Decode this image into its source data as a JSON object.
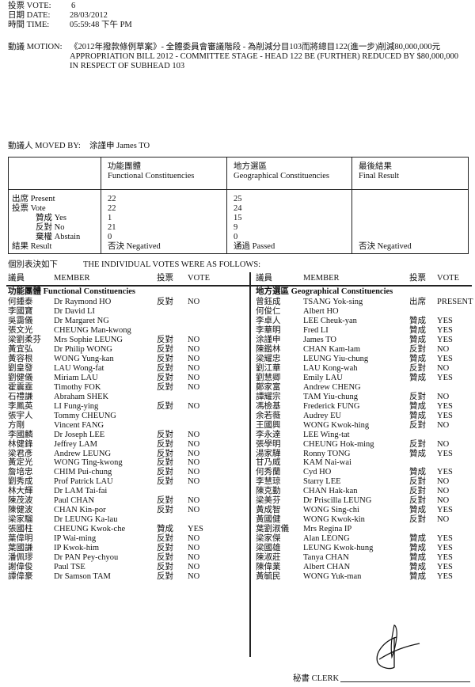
{
  "header": {
    "vote_label": "投票 VOTE:",
    "vote_value": "6",
    "date_label": "日期 DATE:",
    "date_value": "28/03/2012",
    "time_label": "時間 TIME:",
    "time_value": "05:59:48 下午 PM",
    "motion_label": "動議 MOTION:",
    "motion_lines": [
      "《2012年撥款條例草案》- 全體委員會審議階段 - 為削減分目103而將總目122(進一步)削減80,000,000元",
      "APPROPRIATION BILL 2012 - COMMITTEE STAGE - HEAD 122 BE (FURTHER) REDUCED BY $80,000,000",
      "IN RESPECT OF SUBHEAD 103"
    ],
    "moved_by_label": "動議人 MOVED BY:",
    "moved_by_value": "涂謹申   James TO"
  },
  "summary": {
    "columns": [
      {
        "zh": "功能團體",
        "en": "Functional Constituencies"
      },
      {
        "zh": "地方選區",
        "en": "Geographical Constituencies"
      },
      {
        "zh": "最後結果",
        "en": "Final Result"
      }
    ],
    "row_labels": [
      "出席 Present",
      "投票 Vote",
      "贊成 Yes",
      "反對 No",
      "棄權 Abstain",
      "結果 Result"
    ],
    "functional": [
      "22",
      "22",
      "1",
      "21",
      "0",
      "否決 Negatived"
    ],
    "geographical": [
      "25",
      "24",
      "15",
      "9",
      "0",
      "通過 Passed"
    ],
    "final": [
      "",
      "",
      "",
      "",
      "",
      "否決 Negatived"
    ]
  },
  "individual": {
    "title_zh": "個別表決如下",
    "title_en": "THE INDIVIDUAL VOTES WERE AS FOLLOWS:",
    "col_headers": {
      "member_zh": "議員",
      "member_en": "MEMBER",
      "vote_zh": "投票",
      "vote_en": "VOTE"
    },
    "functional": {
      "title": "功能團體 Functional Constituencies",
      "members": [
        [
          "何鍾泰",
          "Dr Raymond HO",
          "反對",
          "NO"
        ],
        [
          "李國寶",
          "Dr David LI",
          "",
          ""
        ],
        [
          "吳靄儀",
          "Dr Margaret NG",
          "",
          ""
        ],
        [
          "張文光",
          "CHEUNG Man-kwong",
          "",
          ""
        ],
        [
          "梁劉柔芬",
          "Mrs Sophie LEUNG",
          "反對",
          "NO"
        ],
        [
          "黃宜弘",
          "Dr Philip WONG",
          "反對",
          "NO"
        ],
        [
          "黃容根",
          "WONG Yung-kan",
          "反對",
          "NO"
        ],
        [
          "劉皇發",
          "LAU Wong-fat",
          "反對",
          "NO"
        ],
        [
          "劉健儀",
          "Miriam LAU",
          "反對",
          "NO"
        ],
        [
          "霍震霆",
          "Timothy FOK",
          "反對",
          "NO"
        ],
        [
          "石禮謙",
          "Abraham SHEK",
          "",
          ""
        ],
        [
          "李鳳英",
          "LI Fung-ying",
          "反對",
          "NO"
        ],
        [
          "張宇人",
          "Tommy CHEUNG",
          "",
          ""
        ],
        [
          "方剛",
          "Vincent FANG",
          "",
          ""
        ],
        [
          "李國麟",
          "Dr Joseph LEE",
          "反對",
          "NO"
        ],
        [
          "林健鋒",
          "Jeffrey LAM",
          "反對",
          "NO"
        ],
        [
          "梁君彥",
          "Andrew LEUNG",
          "反對",
          "NO"
        ],
        [
          "黃定光",
          "WONG Ting-kwong",
          "反對",
          "NO"
        ],
        [
          "詹培忠",
          "CHIM Pui-chung",
          "反對",
          "NO"
        ],
        [
          "劉秀成",
          "Prof Patrick LAU",
          "反對",
          "NO"
        ],
        [
          "林大輝",
          "Dr LAM Tai-fai",
          "",
          ""
        ],
        [
          "陳茂波",
          "Paul CHAN",
          "反對",
          "NO"
        ],
        [
          "陳健波",
          "CHAN Kin-por",
          "反對",
          "NO"
        ],
        [
          "梁家騮",
          "Dr LEUNG Ka-lau",
          "",
          ""
        ],
        [
          "張國柱",
          "CHEUNG Kwok-che",
          "贊成",
          "YES"
        ],
        [
          "葉偉明",
          "IP Wai-ming",
          "反對",
          "NO"
        ],
        [
          "葉國謙",
          "IP Kwok-him",
          "反對",
          "NO"
        ],
        [
          "潘佩璆",
          "Dr PAN Pey-chyou",
          "反對",
          "NO"
        ],
        [
          "謝偉俊",
          "Paul TSE",
          "反對",
          "NO"
        ],
        [
          "譚偉豪",
          "Dr Samson TAM",
          "反對",
          "NO"
        ]
      ]
    },
    "geographical": {
      "title": "地方選區 Geographical Constituencies",
      "members": [
        [
          "曾鈺成",
          "TSANG Yok-sing",
          "出席",
          "PRESENT"
        ],
        [
          "何俊仁",
          "Albert HO",
          "",
          ""
        ],
        [
          "李卓人",
          "LEE Cheuk-yan",
          "贊成",
          "YES"
        ],
        [
          "李華明",
          "Fred LI",
          "贊成",
          "YES"
        ],
        [
          "涂謹申",
          "James TO",
          "贊成",
          "YES"
        ],
        [
          "陳鑑林",
          "CHAN Kam-lam",
          "反對",
          "NO"
        ],
        [
          "梁耀忠",
          "LEUNG Yiu-chung",
          "贊成",
          "YES"
        ],
        [
          "劉江華",
          "LAU Kong-wah",
          "反對",
          "NO"
        ],
        [
          "劉慧卿",
          "Emily LAU",
          "贊成",
          "YES"
        ],
        [
          "鄭家富",
          "Andrew CHENG",
          "",
          ""
        ],
        [
          "譚耀宗",
          "TAM Yiu-chung",
          "反對",
          "NO"
        ],
        [
          "馮檢基",
          "Frederick FUNG",
          "贊成",
          "YES"
        ],
        [
          "余若薇",
          "Audrey EU",
          "贊成",
          "YES"
        ],
        [
          "王國興",
          "WONG Kwok-hing",
          "反對",
          "NO"
        ],
        [
          "李永達",
          "LEE Wing-tat",
          "",
          ""
        ],
        [
          "張學明",
          "CHEUNG Hok-ming",
          "反對",
          "NO"
        ],
        [
          "湯家驊",
          "Ronny TONG",
          "贊成",
          "YES"
        ],
        [
          "甘乃威",
          "KAM Nai-wai",
          "",
          ""
        ],
        [
          "何秀蘭",
          "Cyd HO",
          "贊成",
          "YES"
        ],
        [
          "李慧琼",
          "Starry LEE",
          "反對",
          "NO"
        ],
        [
          "陳克勤",
          "CHAN Hak-kan",
          "反對",
          "NO"
        ],
        [
          "梁美芬",
          "Dr Priscilla LEUNG",
          "反對",
          "NO"
        ],
        [
          "黃成智",
          "WONG Sing-chi",
          "贊成",
          "YES"
        ],
        [
          "黃國健",
          "WONG Kwok-kin",
          "反對",
          "NO"
        ],
        [
          "葉劉淑儀",
          "Mrs Regina IP",
          "",
          ""
        ],
        [
          "梁家傑",
          "Alan LEONG",
          "贊成",
          "YES"
        ],
        [
          "梁國雄",
          "LEUNG Kwok-hung",
          "贊成",
          "YES"
        ],
        [
          "陳淑莊",
          "Tanya CHAN",
          "贊成",
          "YES"
        ],
        [
          "陳偉業",
          "Albert CHAN",
          "贊成",
          "YES"
        ],
        [
          "黃毓民",
          "WONG Yuk-man",
          "贊成",
          "YES"
        ]
      ]
    }
  },
  "footer": {
    "clerk_label": "秘書 CLERK"
  }
}
